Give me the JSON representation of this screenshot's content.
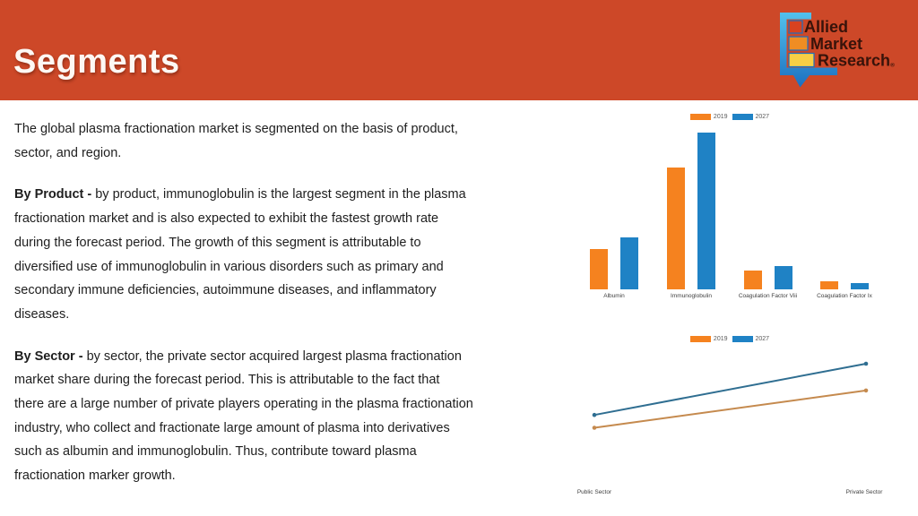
{
  "header": {
    "title": "Segments"
  },
  "logo": {
    "line1": "Allied",
    "line2": "Market",
    "line3": "Research",
    "reg": "®"
  },
  "content": {
    "paragraphs": [
      {
        "lead": "",
        "body": "The global plasma fractionation market is segmented on the basis of product,\nsector, and region."
      },
      {
        "lead": "By Product - ",
        "body": "by product, immunoglobulin is the largest segment in the plasma\nfractionation market and is also expected to exhibit the fastest growth rate\nduring the forecast period. The growth of this segment is attributable to\ndiversified use of immunoglobulin in various disorders such as primary and\nsecondary immune deficiencies, autoimmune diseases, and inflammatory\ndiseases."
      },
      {
        "lead": "By Sector - ",
        "body": "by sector, the private sector acquired largest plasma fractionation\nmarket share during the forecast period. This is attributable to the fact that\nthere are a large number of private players operating in the plasma fractionation\nindustry, who collect and fractionate large amount of plasma into derivatives\nsuch as albumin and immunoglobulin. Thus, contribute toward plasma\nfractionation marker growth."
      }
    ]
  },
  "colors": {
    "header_bg": "#cd4828",
    "bar_2019": "#f5821f",
    "bar_2027": "#1f82c5",
    "line_2019": "#c58a4e",
    "line_2027": "#2f6e91",
    "logo_bubble_top": "#53c1ec",
    "logo_bubble_bottom": "#1c6fc0",
    "logo_rect_red": "#d8421f",
    "logo_rect_orange": "#ef8d23",
    "logo_rect_yellow": "#f7cf45"
  },
  "chart_data": [
    {
      "type": "bar",
      "title": "",
      "categories": [
        "Albumin",
        "Immunoglobulin",
        "Coagulation Factor Viii",
        "Coagulation Factor Ix"
      ],
      "series": [
        {
          "name": "2019",
          "values": [
            26,
            78,
            12,
            5
          ]
        },
        {
          "name": "2027",
          "values": [
            33,
            100,
            15,
            4
          ]
        }
      ],
      "colors": [
        "#f5821f",
        "#1f82c5"
      ],
      "legend_colors": [
        "#f5821f",
        "#1f82c5"
      ],
      "legend_position": "top",
      "xlabel": "",
      "ylabel": "",
      "ylim": [
        0,
        100
      ],
      "grid": false
    },
    {
      "type": "line",
      "title": "",
      "categories": [
        "Public Sector",
        "Private Sector"
      ],
      "series": [
        {
          "name": "2019",
          "values": [
            25,
            57
          ]
        },
        {
          "name": "2027",
          "values": [
            36,
            80
          ]
        }
      ],
      "colors": [
        "#c58a4e",
        "#2f6e91"
      ],
      "legend_colors": [
        "#f5821f",
        "#1f82c5"
      ],
      "legend_position": "top",
      "xlabel": "",
      "ylabel": "",
      "ylim": [
        0,
        100
      ],
      "grid": false
    }
  ]
}
